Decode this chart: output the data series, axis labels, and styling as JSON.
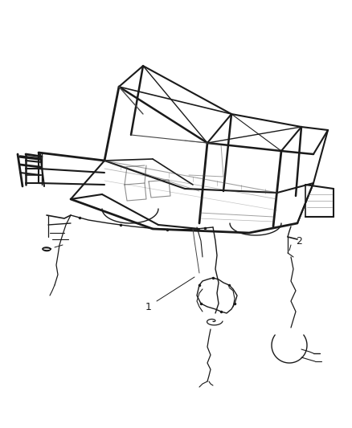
{
  "background_color": "#ffffff",
  "fig_width": 4.38,
  "fig_height": 5.33,
  "dpi": 100,
  "label_1": "1",
  "label_2": "2",
  "line_color": "#1a1a1a",
  "line_color_med": "#444444",
  "line_color_light": "#777777"
}
